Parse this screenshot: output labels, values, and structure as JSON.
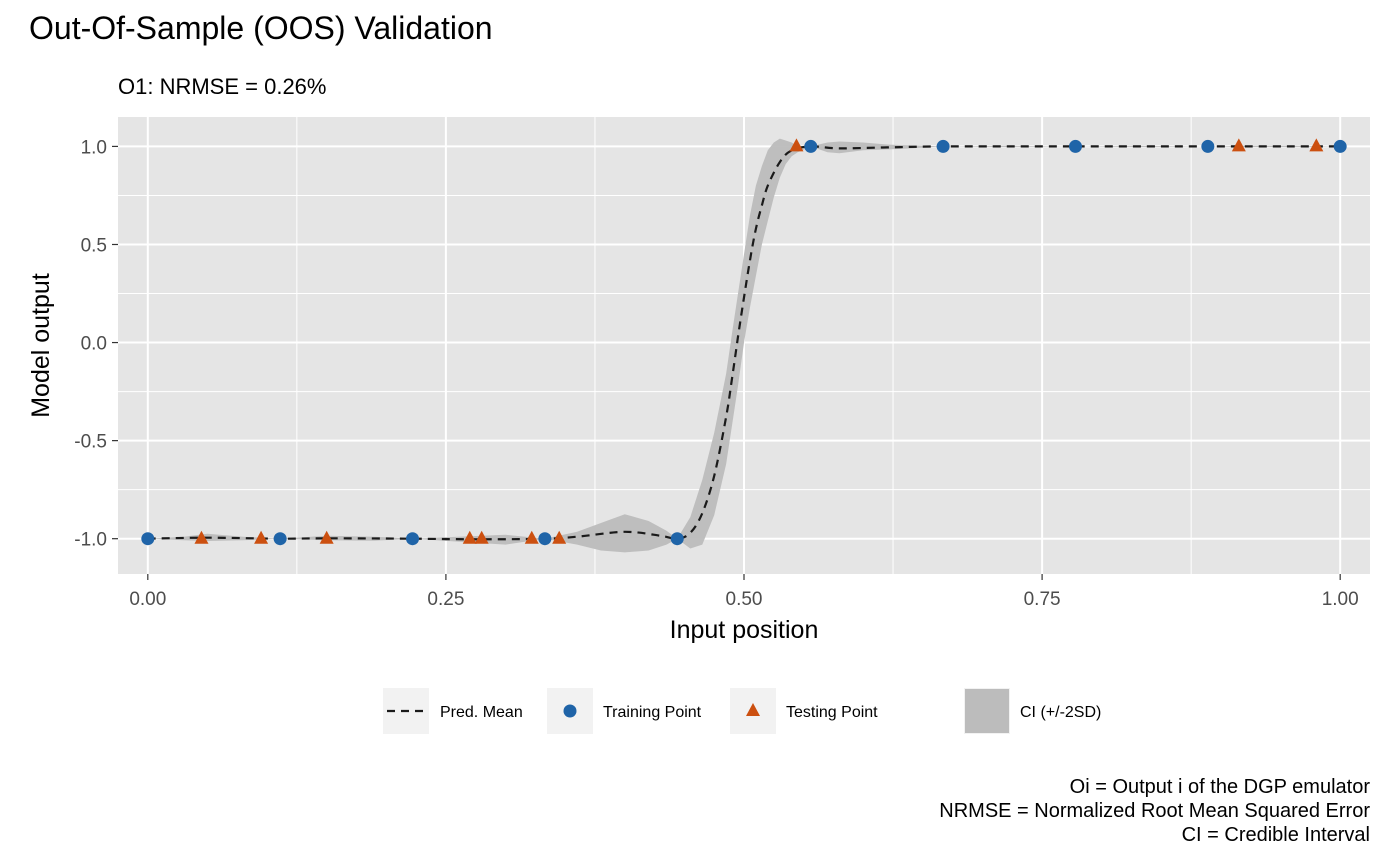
{
  "title": "Out-Of-Sample (OOS) Validation",
  "subtitle": "O1: NRMSE = 0.26%",
  "caption": [
    "Oi = Output i of the DGP emulator",
    "NRMSE = Normalized Root Mean Squared Error",
    "CI = Credible Interval"
  ],
  "colors": {
    "panel": "#e5e5e5",
    "grid": "#ffffff",
    "training": "#1f64a8",
    "testing": "#cc5010",
    "band": "#bcbcbc",
    "mean": "#1a1a1a"
  },
  "chart_data": {
    "type": "line",
    "title": "Out-Of-Sample (OOS) Validation",
    "subtitle": "O1: NRMSE = 0.26%",
    "xlabel": "Input position",
    "ylabel": "Model output",
    "xlim": [
      -0.025,
      1.025
    ],
    "ylim": [
      -1.18,
      1.15
    ],
    "xticks": [
      0.0,
      0.25,
      0.5,
      0.75,
      1.0
    ],
    "xtick_labels": [
      "0.00",
      "0.25",
      "0.50",
      "0.75",
      "1.00"
    ],
    "yticks": [
      1.0,
      0.5,
      0.0,
      -0.5,
      -1.0
    ],
    "ytick_labels": [
      "1.0",
      "0.5",
      "0.0",
      "-0.5",
      "-1.0"
    ],
    "grid": true,
    "legend_position": "bottom",
    "legend": [
      {
        "key": "mean",
        "label": "Pred. Mean"
      },
      {
        "key": "training",
        "label": "Training Point"
      },
      {
        "key": "testing",
        "label": "Testing Point"
      },
      {
        "key": "band",
        "label": "CI (+/-2SD)"
      }
    ],
    "series": [
      {
        "name": "Pred. Mean",
        "kind": "line",
        "x": [
          0.0,
          0.05,
          0.111,
          0.15,
          0.222,
          0.28,
          0.333,
          0.36,
          0.4,
          0.43,
          0.444,
          0.455,
          0.465,
          0.475,
          0.485,
          0.49,
          0.495,
          0.5,
          0.505,
          0.51,
          0.515,
          0.52,
          0.53,
          0.54,
          0.556,
          0.58,
          0.62,
          0.667,
          0.778,
          0.889,
          0.92,
          0.96,
          1.0
        ],
        "y": [
          -1.0,
          -0.995,
          -1.0,
          -0.998,
          -1.0,
          -1.003,
          -1.0,
          -0.99,
          -0.965,
          -0.985,
          -1.0,
          -0.97,
          -0.87,
          -0.68,
          -0.38,
          -0.18,
          0.03,
          0.23,
          0.42,
          0.58,
          0.7,
          0.8,
          0.92,
          0.98,
          1.0,
          0.99,
          0.995,
          1.0,
          1.0,
          1.0,
          1.0,
          1.0,
          1.0
        ]
      },
      {
        "name": "CI (+/-2SD)",
        "kind": "band",
        "x": [
          0.0,
          0.03,
          0.05,
          0.08,
          0.111,
          0.15,
          0.19,
          0.222,
          0.26,
          0.3,
          0.333,
          0.36,
          0.38,
          0.4,
          0.42,
          0.435,
          0.444,
          0.455,
          0.465,
          0.475,
          0.485,
          0.49,
          0.495,
          0.5,
          0.505,
          0.51,
          0.515,
          0.52,
          0.525,
          0.53,
          0.535,
          0.54,
          0.545,
          0.556,
          0.57,
          0.58,
          0.6,
          0.62,
          0.64,
          0.667,
          0.72,
          0.778,
          0.83,
          0.889,
          0.92,
          0.96,
          1.0
        ],
        "lower": [
          -1.0,
          -1.008,
          -1.012,
          -1.008,
          -1.0,
          -1.008,
          -1.01,
          -1.0,
          -1.015,
          -1.03,
          -1.0,
          -1.03,
          -1.06,
          -1.07,
          -1.06,
          -1.03,
          -1.0,
          -1.05,
          -1.03,
          -0.88,
          -0.62,
          -0.42,
          -0.22,
          0.0,
          0.18,
          0.34,
          0.5,
          0.62,
          0.74,
          0.84,
          0.91,
          0.95,
          0.97,
          1.0,
          0.97,
          0.965,
          0.98,
          0.985,
          0.99,
          1.0,
          0.997,
          1.0,
          0.997,
          1.0,
          0.997,
          0.997,
          1.0
        ],
        "upper": [
          -1.0,
          -0.99,
          -0.975,
          -0.99,
          -1.0,
          -0.985,
          -0.99,
          -1.0,
          -0.99,
          -0.98,
          -1.0,
          -0.965,
          -0.92,
          -0.875,
          -0.91,
          -0.96,
          -1.0,
          -0.89,
          -0.7,
          -0.46,
          -0.16,
          0.05,
          0.25,
          0.45,
          0.65,
          0.8,
          0.9,
          0.98,
          1.02,
          1.04,
          1.03,
          1.02,
          1.0,
          1.0,
          1.02,
          1.025,
          1.02,
          1.01,
          1.005,
          1.0,
          1.003,
          1.0,
          1.003,
          1.0,
          1.003,
          1.003,
          1.0
        ]
      },
      {
        "name": "Training Point",
        "kind": "points",
        "x": [
          0.0,
          0.111,
          0.222,
          0.333,
          0.444,
          0.556,
          0.667,
          0.778,
          0.889,
          1.0
        ],
        "y": [
          -1.0,
          -1.0,
          -1.0,
          -1.0,
          -1.0,
          1.0,
          1.0,
          1.0,
          1.0,
          1.0
        ]
      },
      {
        "name": "Testing Point",
        "kind": "points",
        "x": [
          0.045,
          0.095,
          0.15,
          0.27,
          0.28,
          0.322,
          0.345,
          0.544,
          0.915,
          0.98
        ],
        "y": [
          -1.0,
          -1.0,
          -1.0,
          -1.0,
          -1.0,
          -1.0,
          -1.0,
          1.0,
          1.0,
          1.0
        ]
      }
    ]
  }
}
